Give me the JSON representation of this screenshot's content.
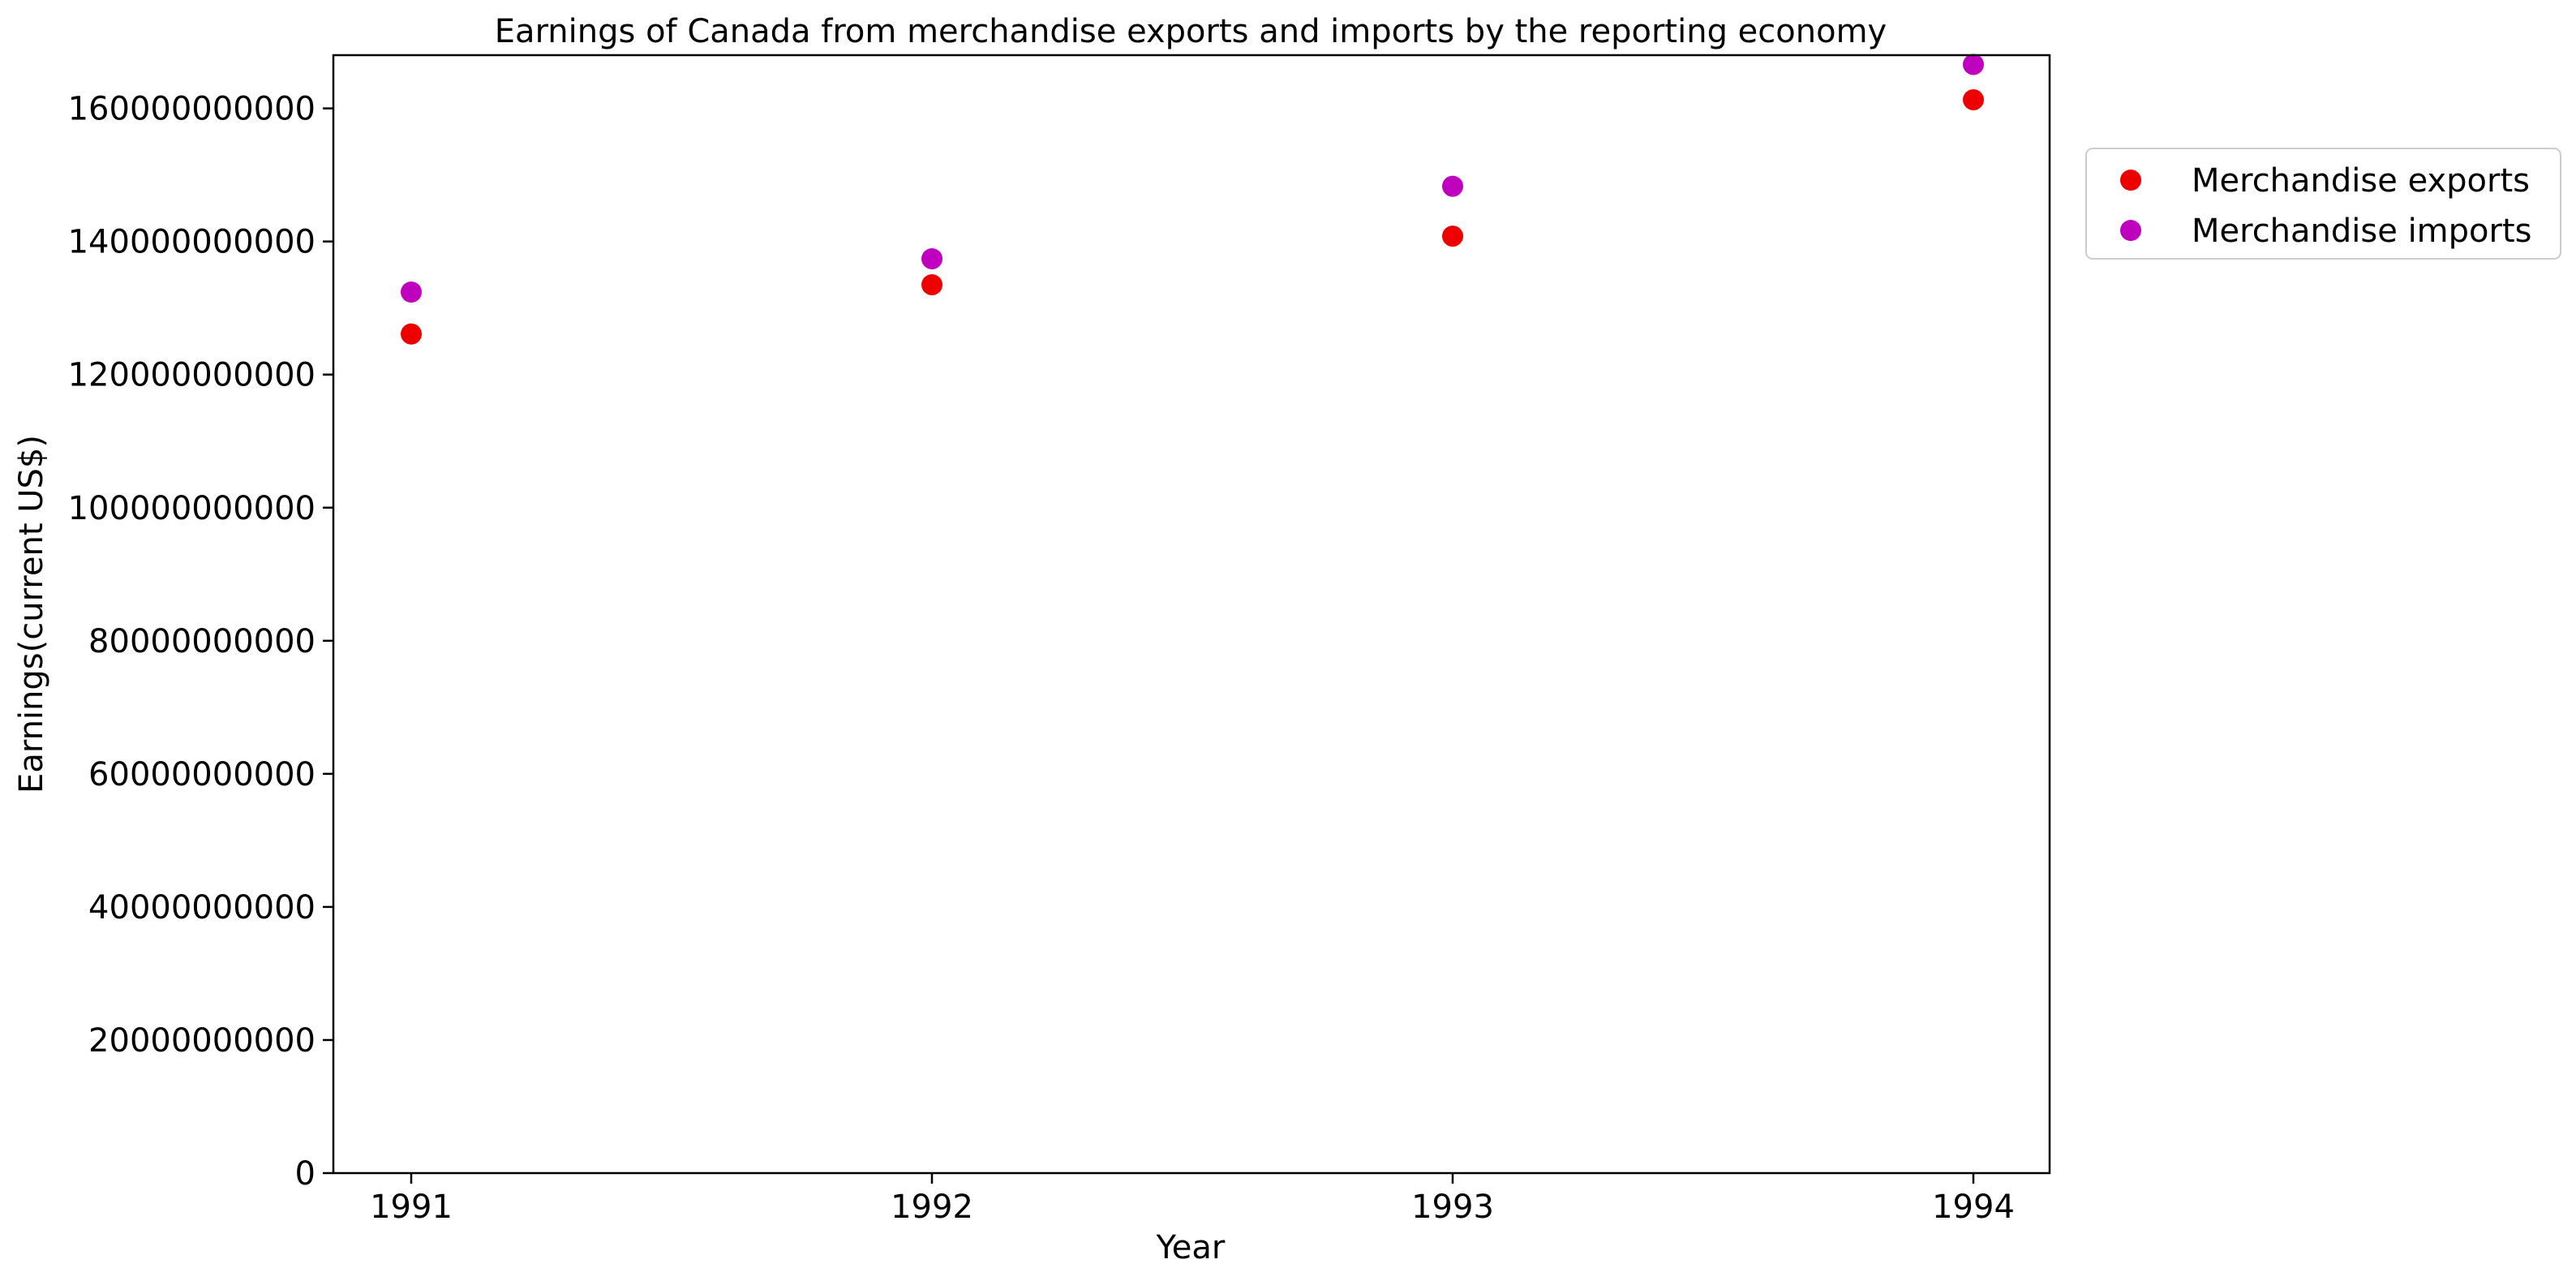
{
  "chart_data": {
    "type": "scatter",
    "title": "Earnings of Canada from merchandise exports and imports by the reporting economy",
    "xlabel": "Year",
    "ylabel": "Earnings(current US$)",
    "categories": [
      "1991",
      "1992",
      "1993",
      "1994"
    ],
    "ylim": [
      0,
      168000000000
    ],
    "yticks": [
      0,
      20000000000,
      40000000000,
      60000000000,
      80000000000,
      100000000000,
      120000000000,
      140000000000,
      160000000000
    ],
    "ytick_labels": [
      "0",
      "20000000000",
      "40000000000",
      "60000000000",
      "80000000000",
      "100000000000",
      "120000000000",
      "140000000000",
      "160000000000"
    ],
    "grid": false,
    "legend_position": "outside-top-right",
    "series": [
      {
        "name": "Merchandise exports",
        "color": "#ee0000",
        "values": [
          126100000000,
          133500000000,
          140800000000,
          161300000000
        ]
      },
      {
        "name": "Merchandise imports",
        "color": "#bf00bf",
        "values": [
          132400000000,
          137400000000,
          148300000000,
          166600000000
        ]
      }
    ]
  }
}
